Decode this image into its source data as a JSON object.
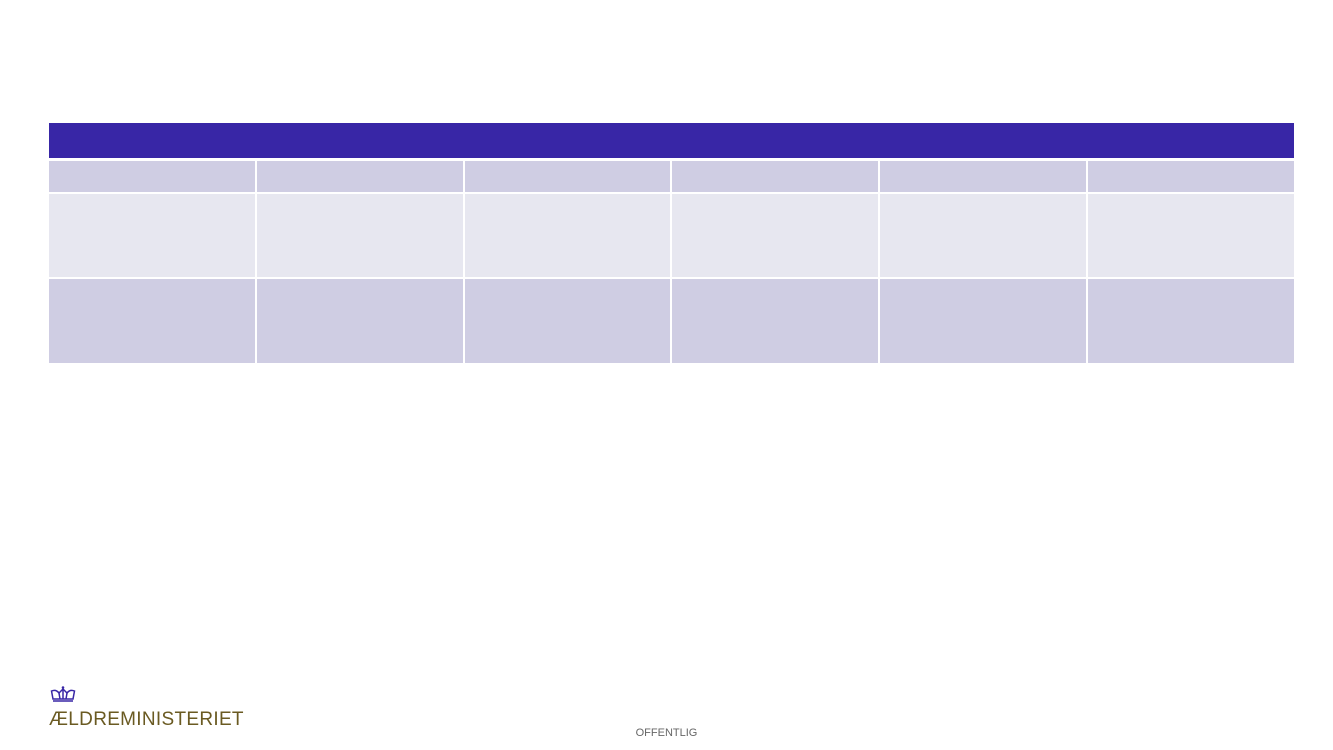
{
  "table": {
    "header_color": "#3826a6",
    "rows": [
      {
        "cells": [
          "",
          "",
          "",
          "",
          "",
          ""
        ]
      },
      {
        "cells": [
          "",
          "",
          "",
          "",
          "",
          ""
        ]
      },
      {
        "cells": [
          "",
          "",
          "",
          "",
          "",
          ""
        ]
      }
    ]
  },
  "logo": {
    "icon": "crown-icon",
    "text": "ÆLDREMINISTERIET"
  },
  "footer": {
    "classification": "OFFENTLIG"
  }
}
